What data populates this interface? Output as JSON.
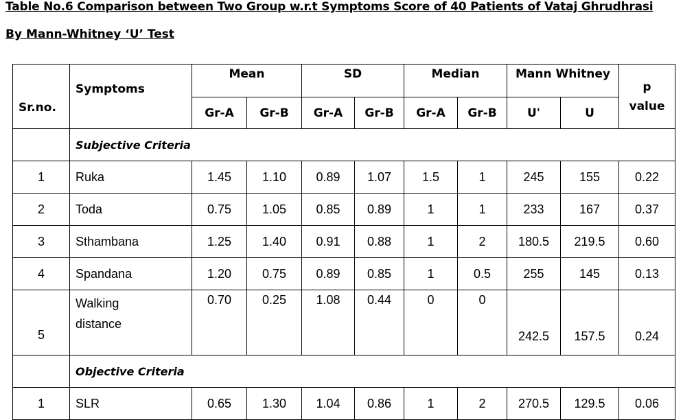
{
  "title": "Table No.6 Comparison between Two Group w.r.t Symptoms Score of 40 Patients of Vataj Ghrudhrasi",
  "subtitle": "By Mann-Whitney ‘U’ Test",
  "headers": {
    "srno": "Sr.no.",
    "symptoms": "Symptoms",
    "mean": "Mean",
    "sd": "SD",
    "median": "Median",
    "mw": "Mann Whitney",
    "p": "p value",
    "gra": "Gr-A",
    "grb": "Gr-B",
    "uprime": "U'",
    "u": "U"
  },
  "sections": {
    "subjective": "Subjective Criteria",
    "objective": "Objective Criteria"
  },
  "rows": [
    {
      "sr": "1",
      "symptom": "Ruka",
      "mean_a": "1.45",
      "mean_b": "1.10",
      "sd_a": "0.89",
      "sd_b": "1.07",
      "med_a": "1.5",
      "med_b": "1",
      "u_prime": "245",
      "u": "155",
      "p": "0.22"
    },
    {
      "sr": "2",
      "symptom": "Toda",
      "mean_a": "0.75",
      "mean_b": "1.05",
      "sd_a": "0.85",
      "sd_b": "0.89",
      "med_a": "1",
      "med_b": "1",
      "u_prime": "233",
      "u": "167",
      "p": "0.37"
    },
    {
      "sr": "3",
      "symptom": "Sthambana",
      "mean_a": "1.25",
      "mean_b": "1.40",
      "sd_a": "0.91",
      "sd_b": "0.88",
      "med_a": "1",
      "med_b": "2",
      "u_prime": "180.5",
      "u": "219.5",
      "p": "0.60"
    },
    {
      "sr": "4",
      "symptom": "Spandana",
      "mean_a": "1.20",
      "mean_b": "0.75",
      "sd_a": "0.89",
      "sd_b": "0.85",
      "med_a": "1",
      "med_b": "0.5",
      "u_prime": "255",
      "u": "145",
      "p": "0.13"
    },
    {
      "sr": "5",
      "symptom_line1": "Walking",
      "symptom_line2": "distance",
      "mean_a": "0.70",
      "mean_b": "0.25",
      "sd_a": "1.08",
      "sd_b": "0.44",
      "med_a": "0",
      "med_b": "0",
      "u_prime": "242.5",
      "u": "157.5",
      "p": "0.24"
    },
    {
      "sr": "1",
      "symptom": "SLR",
      "mean_a": "0.65",
      "mean_b": "1.30",
      "sd_a": "1.04",
      "sd_b": "0.86",
      "med_a": "1",
      "med_b": "2",
      "u_prime": "270.5",
      "u": "129.5",
      "p": "0.06"
    }
  ]
}
